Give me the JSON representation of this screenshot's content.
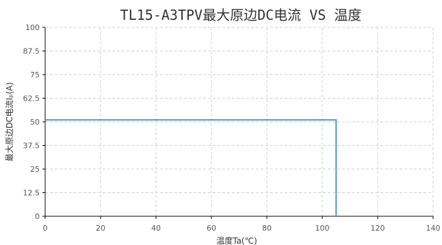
{
  "chart_data": {
    "type": "line",
    "title": "TL15-A3TPV最大原边DC电流 VS 温度",
    "xlabel": "温度Ta(℃)",
    "ylabel": "最大原边DC电流Iₚ(A)",
    "xlim": [
      0,
      140
    ],
    "ylim": [
      0,
      100
    ],
    "xticks": [
      "0",
      "20",
      "40",
      "60",
      "80",
      "100",
      "120",
      "140"
    ],
    "yticks": [
      "0",
      "12.5",
      "25",
      "37.5",
      "50",
      "62.5",
      "75",
      "87.5",
      "100"
    ],
    "grid": true,
    "legend": "none",
    "series": [
      {
        "x": [
          0,
          105,
          105
        ],
        "y": [
          51,
          51,
          0
        ],
        "color": "#5b9bd5"
      }
    ]
  }
}
